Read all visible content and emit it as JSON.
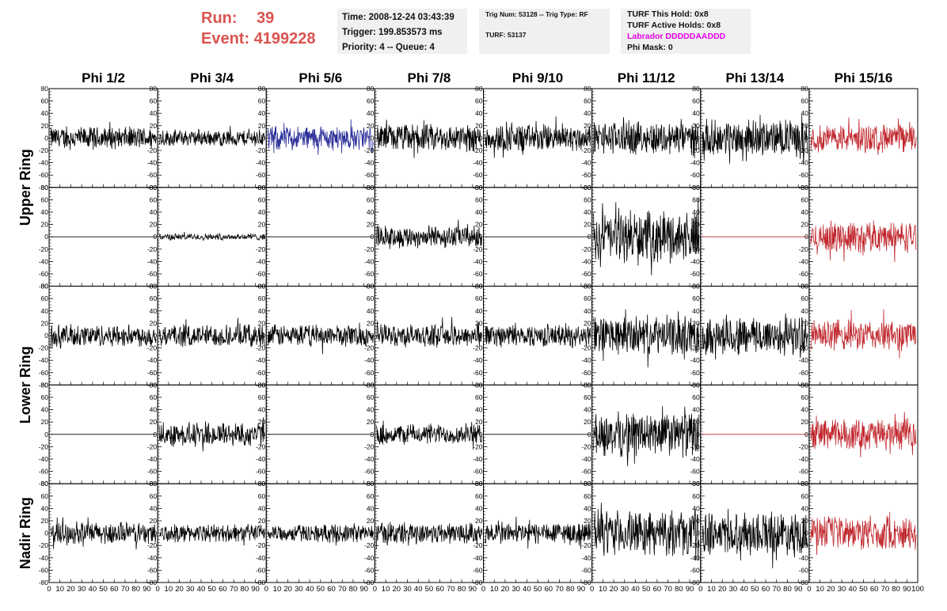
{
  "header": {
    "run_label": "Run:",
    "run_value": "39",
    "event_label": "Event:",
    "event_value": "4199228"
  },
  "info_time": {
    "line1": "Time: 2008-12-24 03:43:39",
    "line2": "Trigger: 199.853573 ms",
    "line3": "Priority: 4 -- Queue: 4"
  },
  "info_trig": {
    "line1": "Trig Num: 53128 -- Trig Type: RF",
    "line2": "TURF: 53137"
  },
  "info_turf": {
    "line1": "TURF This Hold: 0x8",
    "line2": "TURF Active Holds: 0x8",
    "line3": "Labrador DDDDDAADDD",
    "line4": "Phi Mask: 0"
  },
  "colors": {
    "default_trace": "#000000",
    "blue_trace": "#2b2f9a",
    "red_trace": "#c0272d",
    "labrador": "#e600e6",
    "run_text": "#d9534f"
  },
  "chart_data": {
    "type": "line",
    "description_columns": [
      "Phi 1/2",
      "Phi 3/4",
      "Phi 5/6",
      "Phi 7/8",
      "Phi 9/10",
      "Phi 11/12",
      "Phi 13/14",
      "Phi 15/16"
    ],
    "ring_labels": [
      {
        "text": "Upper Ring",
        "rows": [
          0,
          1
        ]
      },
      {
        "text": "Lower Ring",
        "rows": [
          2,
          3
        ]
      },
      {
        "text": "Nadir Ring",
        "rows": [
          4
        ]
      }
    ],
    "ylim": [
      -80,
      80
    ],
    "y_ticks": [
      "80",
      "60",
      "40",
      "20",
      "0",
      "-20",
      "-40",
      "-60",
      "-80"
    ],
    "xlim": [
      0,
      100
    ],
    "x_ticks": [
      "0",
      "10",
      "20",
      "30",
      "40",
      "50",
      "60",
      "70",
      "80",
      "90",
      "100"
    ],
    "panels": [
      [
        {
          "amp": 20,
          "color": "default"
        },
        {
          "amp": 15,
          "color": "default"
        },
        {
          "amp": 22,
          "color": "blue"
        },
        {
          "amp": 25,
          "color": "default"
        },
        {
          "amp": 25,
          "color": "default"
        },
        {
          "amp": 30,
          "color": "default"
        },
        {
          "amp": 32,
          "color": "default"
        },
        {
          "amp": 25,
          "color": "red"
        }
      ],
      [
        {
          "amp": 0,
          "color": "default"
        },
        {
          "amp": 6,
          "color": "default"
        },
        {
          "amp": 0,
          "color": "default"
        },
        {
          "amp": 20,
          "color": "default"
        },
        {
          "amp": 0,
          "color": "default"
        },
        {
          "amp": 45,
          "color": "default"
        },
        {
          "amp": 0,
          "color": "red"
        },
        {
          "amp": 28,
          "color": "red"
        }
      ],
      [
        {
          "amp": 20,
          "color": "default"
        },
        {
          "amp": 20,
          "color": "default"
        },
        {
          "amp": 20,
          "color": "default"
        },
        {
          "amp": 20,
          "color": "default"
        },
        {
          "amp": 20,
          "color": "default"
        },
        {
          "amp": 35,
          "color": "default"
        },
        {
          "amp": 35,
          "color": "default"
        },
        {
          "amp": 28,
          "color": "red"
        }
      ],
      [
        {
          "amp": 0,
          "color": "default"
        },
        {
          "amp": 22,
          "color": "default"
        },
        {
          "amp": 0,
          "color": "default"
        },
        {
          "amp": 18,
          "color": "default"
        },
        {
          "amp": 0,
          "color": "default"
        },
        {
          "amp": 40,
          "color": "default"
        },
        {
          "amp": 0,
          "color": "red"
        },
        {
          "amp": 28,
          "color": "red"
        }
      ],
      [
        {
          "amp": 20,
          "color": "default"
        },
        {
          "amp": 16,
          "color": "default"
        },
        {
          "amp": 16,
          "color": "default"
        },
        {
          "amp": 20,
          "color": "default"
        },
        {
          "amp": 20,
          "color": "default"
        },
        {
          "amp": 40,
          "color": "default"
        },
        {
          "amp": 38,
          "color": "default"
        },
        {
          "amp": 30,
          "color": "red"
        }
      ]
    ]
  }
}
